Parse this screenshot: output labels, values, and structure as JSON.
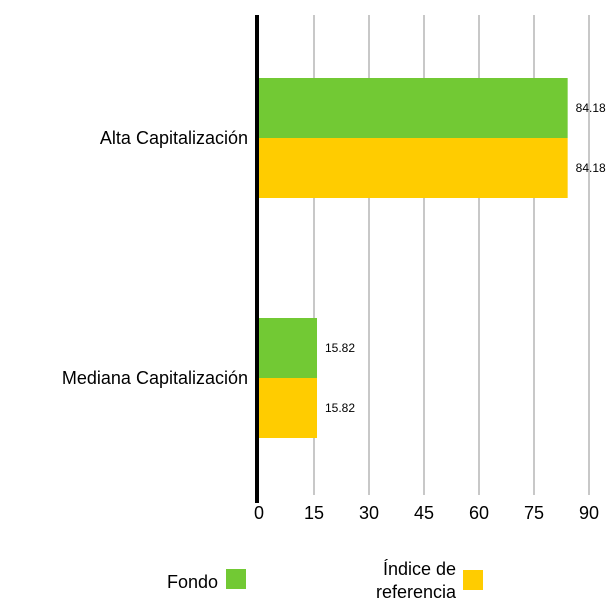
{
  "chart_data": {
    "type": "bar",
    "orientation": "horizontal",
    "categories": [
      "Alta Capitalización",
      "Mediana Capitalización"
    ],
    "series": [
      {
        "name": "Fondo",
        "color": "#72c934",
        "values": [
          84.18,
          15.82
        ],
        "value_labels": [
          "84.18",
          "15.82"
        ]
      },
      {
        "name": "Índice de referencia",
        "color": "#ffcc00",
        "values": [
          84.18,
          15.82
        ],
        "value_labels": [
          "84.18",
          "15.82"
        ]
      }
    ],
    "xlim": [
      0,
      90
    ],
    "xticks": [
      "0",
      "15",
      "30",
      "45",
      "60",
      "75",
      "90"
    ],
    "grid": true,
    "legend_position": "bottom",
    "legend": [
      {
        "label": "Fondo",
        "color": "#72c934"
      },
      {
        "label_lines": [
          "Índice de",
          "referencia"
        ],
        "color": "#ffcc00"
      }
    ]
  }
}
